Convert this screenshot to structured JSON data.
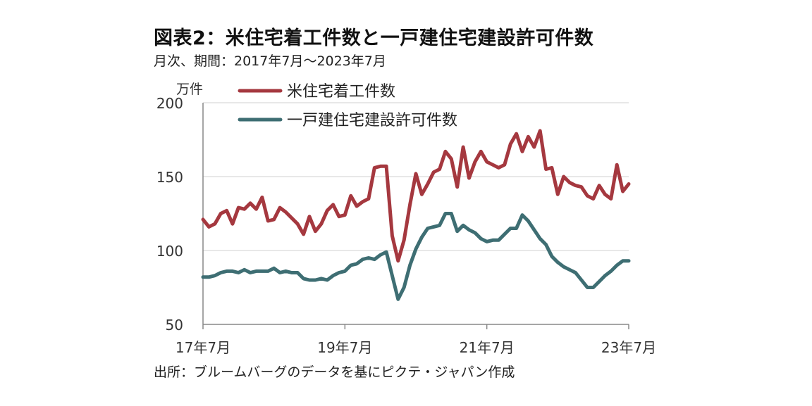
{
  "title": "図表2：米住宅着工件数と一戸建住宅建設許可件数",
  "subtitle": "月次、期間：2017年7月～2023年7月",
  "source": "出所：ブルームバーグのデータを基にピクテ・ジャパン作成",
  "colors": {
    "starts": "#A5383F",
    "permits": "#3E6E73",
    "grid": "#d9d9d9",
    "axis": "#888888"
  },
  "chart_data": {
    "type": "line",
    "ylabel": "万件",
    "ylim": [
      50,
      200
    ],
    "yticks": [
      50,
      100,
      150,
      200
    ],
    "xticks": [
      {
        "label": "17年7月",
        "index": 0
      },
      {
        "label": "19年7月",
        "index": 24
      },
      {
        "label": "21年7月",
        "index": 48
      },
      {
        "label": "23年7月",
        "index": 72
      }
    ],
    "x_start": "2017-07",
    "x_end": "2023-07",
    "grid": true,
    "legend_position": "top",
    "series": [
      {
        "name": "米住宅着工件数",
        "color": "#A5383F",
        "values": [
          121,
          116,
          118,
          125,
          127,
          118,
          129,
          128,
          132,
          128,
          136,
          120,
          121,
          129,
          126,
          122,
          118,
          111,
          123,
          113,
          118,
          127,
          131,
          123,
          124,
          137,
          130,
          133,
          135,
          156,
          157,
          157,
          110,
          93,
          107,
          131,
          152,
          138,
          145,
          153,
          155,
          167,
          162,
          143,
          170,
          149,
          160,
          167,
          160,
          158,
          156,
          158,
          172,
          179,
          167,
          177,
          170,
          181,
          155,
          156,
          138,
          150,
          146,
          144,
          143,
          137,
          135,
          144,
          138,
          135,
          158,
          140,
          145
        ]
      },
      {
        "name": "一戸建住宅建設許可件数",
        "color": "#3E6E73",
        "values": [
          82,
          82,
          83,
          85,
          86,
          86,
          85,
          87,
          85,
          86,
          86,
          86,
          88,
          85,
          86,
          85,
          85,
          81,
          80,
          80,
          81,
          80,
          83,
          85,
          86,
          90,
          91,
          94,
          95,
          94,
          97,
          99,
          83,
          67,
          75,
          90,
          101,
          109,
          115,
          116,
          117,
          125,
          125,
          113,
          117,
          114,
          112,
          108,
          106,
          107,
          107,
          111,
          115,
          115,
          124,
          120,
          114,
          108,
          104,
          96,
          92,
          89,
          87,
          85,
          80,
          75,
          75,
          79,
          83,
          86,
          90,
          93,
          93
        ]
      }
    ]
  }
}
